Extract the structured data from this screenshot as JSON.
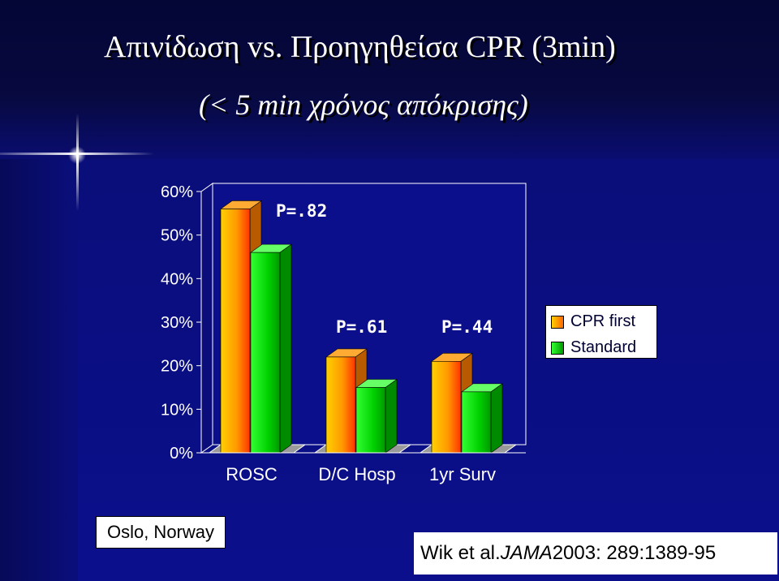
{
  "slide": {
    "title": "Απινίδωση vs. Προηγηθείσα CPR (3min)",
    "subtitle": "(< 5 min χρόνος απόκρισης)",
    "location": "Oslo, Norway",
    "citation": {
      "authors": "Wik et al. ",
      "journal": "JAMA",
      "details": " 2003: 289:1389-95"
    }
  },
  "chart_data": {
    "type": "bar",
    "categories": [
      "ROSC",
      "D/C Hosp",
      "1yr Surv"
    ],
    "series": [
      {
        "name": "CPR first",
        "values": [
          56,
          22,
          21
        ],
        "color": "#ff9900"
      },
      {
        "name": "Standard",
        "values": [
          46,
          15,
          14
        ],
        "color": "#00cc00"
      }
    ],
    "ylim": [
      0,
      60
    ],
    "yticks": [
      "0%",
      "10%",
      "20%",
      "30%",
      "40%",
      "50%",
      "60%"
    ],
    "annotations": [
      "P=.82",
      "P=.61",
      "P=.44"
    ],
    "legend": "right",
    "grid": false,
    "style": "3d"
  }
}
